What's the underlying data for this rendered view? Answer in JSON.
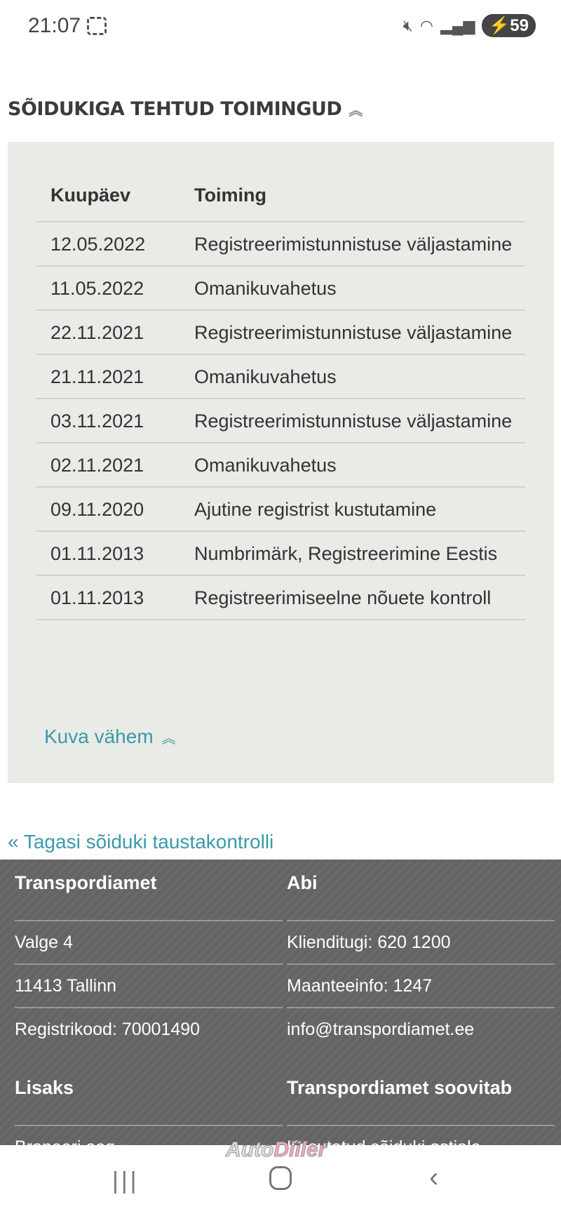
{
  "status_bar": {
    "time": "21:07",
    "battery": "59",
    "icons": [
      "screenshot-icon",
      "mute-icon",
      "wifi-icon",
      "signal-icon",
      "charging-icon"
    ]
  },
  "section": {
    "title": "SÕIDUKIGA TEHTUD TOIMINGUD",
    "collapse_icon": "double-chevron-up-icon"
  },
  "table": {
    "headers": [
      "Kuupäev",
      "Toiming"
    ],
    "rows": [
      [
        "12.05.2022",
        "Registreerimistunnistuse väljastamine"
      ],
      [
        "11.05.2022",
        "Omanikuvahetus"
      ],
      [
        "22.11.2021",
        "Registreerimistunnistuse väljastamine"
      ],
      [
        "21.11.2021",
        "Omanikuvahetus"
      ],
      [
        "03.11.2021",
        "Registreerimistunnistuse väljastamine"
      ],
      [
        "02.11.2021",
        "Omanikuvahetus"
      ],
      [
        "09.11.2020",
        "Ajutine registrist kustutamine"
      ],
      [
        "01.11.2013",
        "Numbrimärk, Registreerimine Eestis"
      ],
      [
        "01.11.2013",
        "Registreerimiseelne nõuete kontroll"
      ]
    ]
  },
  "show_less": "Kuva vähem",
  "back_link": "« Tagasi sõiduki taustakontrolli",
  "footer": {
    "col1": {
      "title": "Transpordiamet",
      "items": [
        "Valge 4",
        "11413 Tallinn",
        "Registrikood: 70001490"
      ]
    },
    "col2": {
      "title": "Abi",
      "items": [
        "Klienditugi: 620 1200",
        "Maanteeinfo: 1247",
        "info@transpordiamet.ee"
      ]
    },
    "col3": {
      "title": "Lisaks",
      "items": [
        "Broneeri aeg »"
      ]
    },
    "col4": {
      "title": "Transpordiamet soovitab",
      "items": [
        "Kasutatud sõiduki ostjale"
      ]
    }
  },
  "watermark": {
    "part1": "Auto",
    "part2": "Diiler"
  },
  "colors": {
    "accent": "#3a9aa8",
    "panel": "#e9ebe6",
    "footer": "#646464"
  }
}
